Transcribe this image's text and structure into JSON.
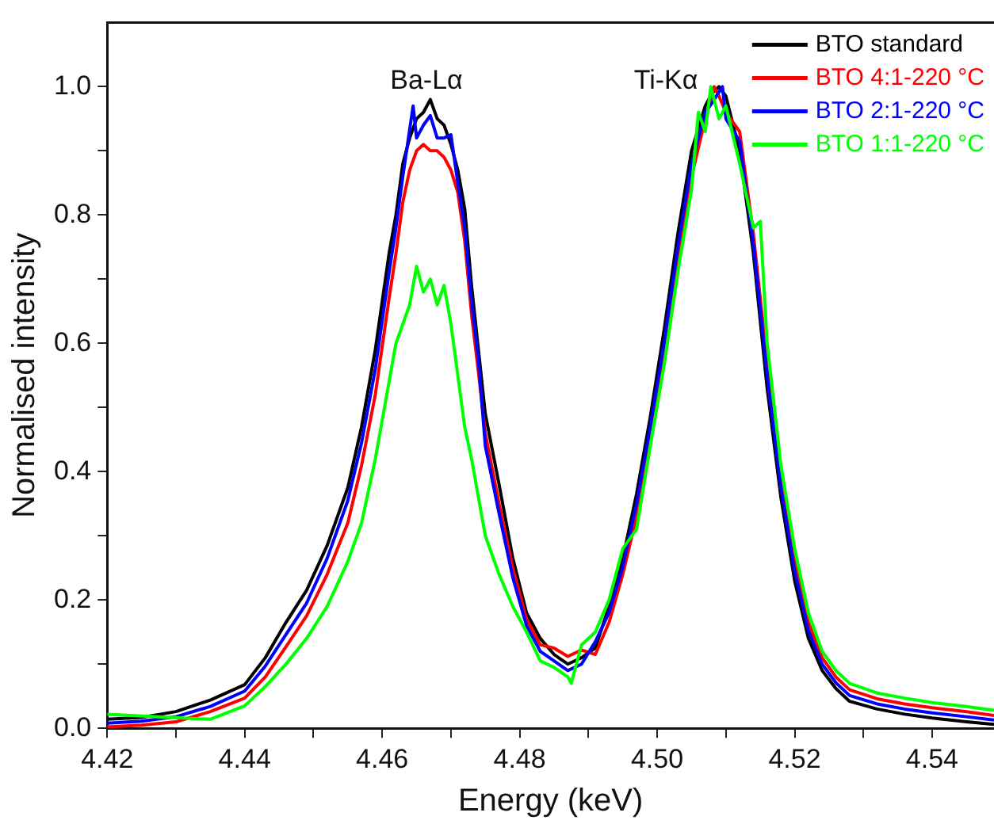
{
  "chart_data": {
    "type": "line",
    "xlabel": "Energy (keV)",
    "ylabel": "Normalised intensity",
    "xlim": [
      4.42,
      4.549
    ],
    "ylim": [
      0,
      1.1
    ],
    "xticks": [
      4.42,
      {
        "value": 4.43,
        "label": null
      },
      4.44,
      {
        "value": 4.45,
        "label": null
      },
      4.46,
      {
        "value": 4.47,
        "label": null
      },
      4.48,
      {
        "value": 4.49,
        "label": null
      },
      {
        "value": 4.5,
        "label": "4.50"
      },
      {
        "value": 4.51,
        "label": null
      },
      4.52,
      {
        "value": 4.53,
        "label": null
      },
      4.54
    ],
    "yticks": [
      {
        "value": 0,
        "label": "0.0"
      },
      {
        "value": 0.1,
        "label": null
      },
      0.2,
      {
        "value": 0.3,
        "label": null
      },
      0.4,
      {
        "value": 0.5,
        "label": null
      },
      0.6,
      {
        "value": 0.7,
        "label": null
      },
      0.8,
      {
        "value": 0.9,
        "label": null
      },
      {
        "value": 1,
        "label": "1.0"
      }
    ],
    "grid": false,
    "legend": "top right",
    "marker": "none",
    "line_style": "solid",
    "annotations": [
      "Ba-Lα",
      "Ti-Kα"
    ],
    "series": [
      {
        "name": "BTO standard",
        "color": "#000000",
        "x": [
          4.42,
          4.425,
          4.43,
          4.435,
          4.44,
          4.443,
          4.446,
          4.449,
          4.452,
          4.455,
          4.457,
          4.459,
          4.461,
          4.462,
          4.463,
          4.464,
          4.465,
          4.466,
          4.467,
          4.468,
          4.469,
          4.47,
          4.471,
          4.472,
          4.473,
          4.474,
          4.475,
          4.477,
          4.479,
          4.481,
          4.483,
          4.485,
          4.487,
          4.489,
          4.491,
          4.493,
          4.495,
          4.497,
          4.499,
          4.501,
          4.503,
          4.505,
          4.507,
          4.508,
          4.509,
          4.51,
          4.512,
          4.514,
          4.516,
          4.518,
          4.52,
          4.522,
          4.524,
          4.526,
          4.528,
          4.532,
          4.536,
          4.54,
          4.545,
          4.549
        ],
        "values": [
          0.014,
          0.017,
          0.026,
          0.044,
          0.068,
          0.11,
          0.165,
          0.215,
          0.285,
          0.375,
          0.47,
          0.59,
          0.74,
          0.8,
          0.88,
          0.92,
          0.95,
          0.96,
          0.98,
          0.95,
          0.94,
          0.91,
          0.87,
          0.81,
          0.69,
          0.59,
          0.49,
          0.38,
          0.265,
          0.18,
          0.14,
          0.115,
          0.1,
          0.11,
          0.125,
          0.19,
          0.265,
          0.365,
          0.485,
          0.62,
          0.77,
          0.9,
          0.97,
          0.99,
          1.0,
          0.985,
          0.9,
          0.74,
          0.53,
          0.36,
          0.23,
          0.14,
          0.09,
          0.062,
          0.042,
          0.03,
          0.022,
          0.016,
          0.01,
          0.006
        ]
      },
      {
        "name": "BTO 4:1-220 °C",
        "color": "#ff0000",
        "x": [
          4.42,
          4.425,
          4.43,
          4.435,
          4.44,
          4.443,
          4.446,
          4.449,
          4.452,
          4.455,
          4.457,
          4.459,
          4.461,
          4.462,
          4.463,
          4.464,
          4.465,
          4.466,
          4.467,
          4.468,
          4.469,
          4.47,
          4.471,
          4.472,
          4.473,
          4.474,
          4.475,
          4.477,
          4.479,
          4.481,
          4.483,
          4.485,
          4.487,
          4.489,
          4.491,
          4.493,
          4.495,
          4.497,
          4.499,
          4.501,
          4.503,
          4.505,
          4.507,
          4.5083,
          4.509,
          4.51,
          4.512,
          4.514,
          4.516,
          4.518,
          4.52,
          4.522,
          4.524,
          4.526,
          4.528,
          4.532,
          4.536,
          4.54,
          4.545,
          4.549
        ],
        "values": [
          0.002,
          0.005,
          0.01,
          0.026,
          0.047,
          0.08,
          0.127,
          0.175,
          0.24,
          0.32,
          0.41,
          0.52,
          0.67,
          0.74,
          0.82,
          0.87,
          0.9,
          0.91,
          0.9,
          0.9,
          0.89,
          0.87,
          0.835,
          0.76,
          0.645,
          0.555,
          0.46,
          0.35,
          0.25,
          0.17,
          0.13,
          0.125,
          0.112,
          0.122,
          0.115,
          0.165,
          0.24,
          0.33,
          0.455,
          0.585,
          0.73,
          0.86,
          0.95,
          1.0,
          0.985,
          0.96,
          0.93,
          0.77,
          0.57,
          0.39,
          0.26,
          0.165,
          0.11,
          0.08,
          0.06,
          0.046,
          0.038,
          0.032,
          0.026,
          0.02
        ]
      },
      {
        "name": "BTO 2:1-220 °C",
        "color": "#0000ff",
        "x": [
          4.42,
          4.425,
          4.43,
          4.435,
          4.44,
          4.443,
          4.446,
          4.449,
          4.452,
          4.455,
          4.457,
          4.459,
          4.461,
          4.462,
          4.463,
          4.4645,
          4.465,
          4.466,
          4.467,
          4.468,
          4.469,
          4.47,
          4.471,
          4.472,
          4.473,
          4.474,
          4.475,
          4.477,
          4.479,
          4.481,
          4.483,
          4.485,
          4.487,
          4.489,
          4.491,
          4.493,
          4.495,
          4.497,
          4.499,
          4.501,
          4.503,
          4.505,
          4.507,
          4.508,
          4.5095,
          4.51,
          4.512,
          4.514,
          4.516,
          4.518,
          4.52,
          4.522,
          4.524,
          4.526,
          4.528,
          4.532,
          4.536,
          4.54,
          4.545,
          4.549
        ],
        "values": [
          0.008,
          0.011,
          0.018,
          0.034,
          0.058,
          0.097,
          0.146,
          0.195,
          0.265,
          0.355,
          0.445,
          0.56,
          0.71,
          0.78,
          0.86,
          0.97,
          0.92,
          0.94,
          0.955,
          0.92,
          0.92,
          0.925,
          0.85,
          0.78,
          0.665,
          0.575,
          0.44,
          0.335,
          0.235,
          0.16,
          0.12,
          0.105,
          0.09,
          0.1,
          0.135,
          0.18,
          0.252,
          0.35,
          0.47,
          0.6,
          0.75,
          0.88,
          0.96,
          0.975,
          1.0,
          0.95,
          0.915,
          0.755,
          0.55,
          0.375,
          0.245,
          0.152,
          0.1,
          0.071,
          0.051,
          0.038,
          0.03,
          0.024,
          0.018,
          0.013
        ]
      },
      {
        "name": "BTO 1:1-220 °C",
        "color": "#00ff00",
        "x": [
          4.42,
          4.435,
          4.44,
          4.443,
          4.446,
          4.449,
          4.452,
          4.455,
          4.457,
          4.459,
          4.461,
          4.462,
          4.463,
          4.464,
          4.465,
          4.466,
          4.467,
          4.468,
          4.469,
          4.47,
          4.471,
          4.472,
          4.473,
          4.474,
          4.475,
          4.477,
          4.479,
          4.481,
          4.483,
          4.485,
          4.487,
          4.4875,
          4.489,
          4.491,
          4.493,
          4.495,
          4.497,
          4.499,
          4.501,
          4.503,
          4.505,
          4.506,
          4.507,
          4.5078,
          4.509,
          4.51,
          4.512,
          4.514,
          4.515,
          4.516,
          4.518,
          4.52,
          4.522,
          4.524,
          4.526,
          4.528,
          4.532,
          4.536,
          4.54,
          4.545,
          4.549
        ],
        "values": [
          0.022,
          0.014,
          0.035,
          0.065,
          0.1,
          0.14,
          0.19,
          0.26,
          0.32,
          0.42,
          0.54,
          0.6,
          0.63,
          0.66,
          0.72,
          0.68,
          0.7,
          0.66,
          0.69,
          0.63,
          0.55,
          0.47,
          0.42,
          0.36,
          0.3,
          0.24,
          0.19,
          0.15,
          0.105,
          0.095,
          0.08,
          0.07,
          0.13,
          0.15,
          0.2,
          0.28,
          0.31,
          0.44,
          0.565,
          0.71,
          0.84,
          0.96,
          0.93,
          1.0,
          0.95,
          0.97,
          0.88,
          0.78,
          0.79,
          0.6,
          0.41,
          0.28,
          0.18,
          0.12,
          0.09,
          0.07,
          0.055,
          0.047,
          0.04,
          0.034,
          0.028
        ]
      }
    ]
  }
}
